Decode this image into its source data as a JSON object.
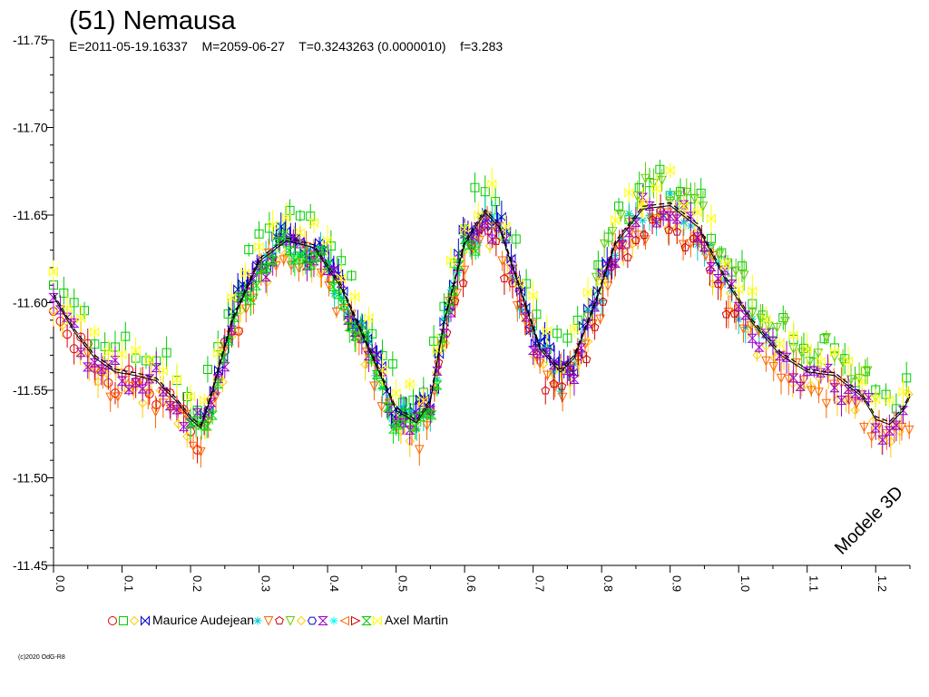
{
  "chart_data": {
    "type": "scatter",
    "title": "(51) Nemausa",
    "subtitle": "E=2011-05-19.16337    M=2059-06-27    T=0.3243263 (0.0000010)    f=3.283",
    "xlabel": "",
    "ylabel": "",
    "xlim": [
      0.0,
      1.25
    ],
    "ylim": [
      -11.45,
      -11.75
    ],
    "y_inverted": true,
    "grid": false,
    "x_ticks": [
      "0.0",
      "0.1",
      "0.2",
      "0.3",
      "0.4",
      "0.5",
      "0.6",
      "0.7",
      "0.8",
      "0.9",
      "1.0",
      "1.1",
      "1.2"
    ],
    "y_ticks": [
      "-11.75",
      "-11.70",
      "-11.65",
      "-11.60",
      "-11.55",
      "-11.50",
      "-11.45"
    ],
    "annotation": "Modele 3D",
    "credit": "(c)2020 OdG-R8",
    "legend": {
      "placement": "bottom",
      "entries": [
        {
          "label": "Maurice Audejean",
          "markers": [
            "circle",
            "square",
            "diamond",
            "bowtie"
          ],
          "colors": [
            "#e00000",
            "#00cc00",
            "#ffcc00",
            "#0000cc"
          ]
        },
        {
          "label": "Axel Martin",
          "markers": [
            "star",
            "tri-down",
            "pentagon",
            "tri-down",
            "diamond",
            "hexagon",
            "hourglass",
            "star",
            "tri-left",
            "tri-right",
            "hourglass",
            "bowtie"
          ],
          "colors": [
            "#00cccc",
            "#ff6600",
            "#cc0000",
            "#66cc00",
            "#ffcc00",
            "#0000cc",
            "#9900cc",
            "#00ffff",
            "#ff6600",
            "#cc0000",
            "#00cc00",
            "#ffff00"
          ]
        }
      ]
    },
    "model_curve": {
      "name": "",
      "color": "#000000",
      "x": [
        0.0,
        0.03,
        0.06,
        0.09,
        0.12,
        0.15,
        0.18,
        0.2,
        0.215,
        0.23,
        0.26,
        0.3,
        0.34,
        0.38,
        0.42,
        0.46,
        0.5,
        0.53,
        0.55,
        0.57,
        0.6,
        0.63,
        0.65,
        0.68,
        0.71,
        0.74,
        0.76,
        0.79,
        0.82,
        0.86,
        0.9,
        0.94,
        0.98,
        1.02,
        1.06,
        1.1,
        1.14,
        1.18,
        1.2,
        1.22,
        1.24,
        1.25
      ],
      "y": [
        -11.605,
        -11.585,
        -11.57,
        -11.562,
        -11.56,
        -11.557,
        -11.545,
        -11.535,
        -11.53,
        -11.548,
        -11.59,
        -11.625,
        -11.637,
        -11.633,
        -11.61,
        -11.575,
        -11.54,
        -11.533,
        -11.545,
        -11.59,
        -11.635,
        -11.653,
        -11.645,
        -11.61,
        -11.575,
        -11.562,
        -11.57,
        -11.6,
        -11.635,
        -11.655,
        -11.657,
        -11.645,
        -11.615,
        -11.59,
        -11.572,
        -11.562,
        -11.56,
        -11.548,
        -11.535,
        -11.532,
        -11.54,
        -11.548
      ]
    },
    "series": [
      {
        "name": "Maurice Audejean",
        "color": "#e00000",
        "marker": "circle",
        "x_start": 0.0,
        "x_end": 0.27,
        "step": 0.01,
        "y_offset": 0.006
      },
      {
        "name": "Maurice Audejean",
        "color": "#00cc00",
        "marker": "square",
        "x_start": 0.0,
        "x_end": 1.25,
        "step": 0.015,
        "y_offset": -0.012
      },
      {
        "name": "Maurice Audejean",
        "color": "#ffcc00",
        "marker": "diamond",
        "x_start": 0.0,
        "x_end": 1.25,
        "step": 0.013,
        "y_offset": 0.008
      },
      {
        "name": "Maurice Audejean",
        "color": "#0000cc",
        "marker": "bowtie",
        "x_start": 0.22,
        "x_end": 0.82,
        "step": 0.007,
        "y_offset": 0.0
      },
      {
        "name": "",
        "color": "#00cccc",
        "marker": "star",
        "x_start": 0.3,
        "x_end": 1.05,
        "step": 0.01,
        "y_offset": 0.004
      },
      {
        "name": "",
        "color": "#ff6600",
        "marker": "tri-down",
        "x_start": 0.05,
        "x_end": 1.25,
        "step": 0.011,
        "y_offset": 0.01
      },
      {
        "name": "",
        "color": "#cc0000",
        "marker": "pentagon",
        "x_start": 0.55,
        "x_end": 1.0,
        "step": 0.012,
        "y_offset": 0.012
      },
      {
        "name": "",
        "color": "#66cc00",
        "marker": "tri-down",
        "x_start": 0.78,
        "x_end": 1.2,
        "step": 0.012,
        "y_offset": -0.01
      },
      {
        "name": "",
        "color": "#9900cc",
        "marker": "hourglass",
        "x_start": 0.0,
        "x_end": 1.25,
        "step": 0.01,
        "y_offset": 0.004
      },
      {
        "name": "Axel Martin",
        "color": "#00dd00",
        "marker": "hourglass",
        "x_start": 0.2,
        "x_end": 0.62,
        "step": 0.008,
        "y_offset": 0.006
      },
      {
        "name": "Axel Martin",
        "color": "#ffff00",
        "marker": "bowtie",
        "x_start": 0.0,
        "x_end": 1.25,
        "step": 0.02,
        "y_offset": -0.01
      }
    ]
  }
}
